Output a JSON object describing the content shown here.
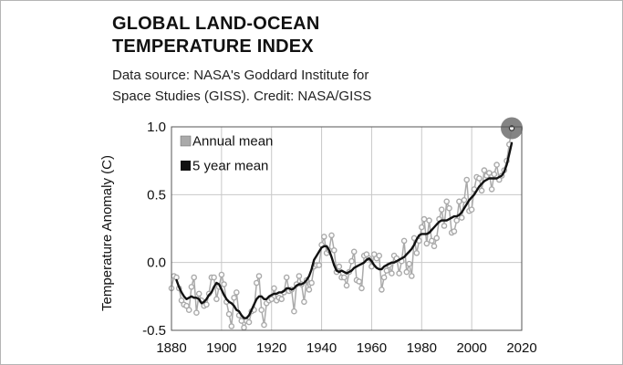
{
  "chart_data": {
    "type": "line",
    "title_lines": [
      "GLOBAL LAND-OCEAN",
      "TEMPERATURE INDEX"
    ],
    "subtitle_lines": [
      "Data source: NASA's Goddard Institute for",
      "Space Studies (GISS). Credit: NASA/GISS"
    ],
    "xlabel": "",
    "ylabel": "Temperature Anomaly (C)",
    "xlim": [
      1880,
      2020
    ],
    "ylim": [
      -0.5,
      1.0
    ],
    "xticks": [
      1880,
      1900,
      1920,
      1940,
      1960,
      1980,
      2000,
      2020
    ],
    "yticks": [
      1.0,
      0.5,
      0.0,
      -0.5
    ],
    "ytick_labels": [
      "1.0",
      "0.5",
      "0.0",
      "-0.5"
    ],
    "grid": true,
    "legend_position": "top-left",
    "colors": {
      "annual": "#aaaaaa",
      "five_year": "#111111",
      "highlight": "#777777"
    },
    "highlight_point": {
      "x": 2016,
      "y": 0.99
    },
    "series": [
      {
        "name": "Annual mean",
        "style": "gray-dots",
        "x": [
          1880,
          1881,
          1882,
          1883,
          1884,
          1885,
          1886,
          1887,
          1888,
          1889,
          1890,
          1891,
          1892,
          1893,
          1894,
          1895,
          1896,
          1897,
          1898,
          1899,
          1900,
          1901,
          1902,
          1903,
          1904,
          1905,
          1906,
          1907,
          1908,
          1909,
          1910,
          1911,
          1912,
          1913,
          1914,
          1915,
          1916,
          1917,
          1918,
          1919,
          1920,
          1921,
          1922,
          1923,
          1924,
          1925,
          1926,
          1927,
          1928,
          1929,
          1930,
          1931,
          1932,
          1933,
          1934,
          1935,
          1936,
          1937,
          1938,
          1939,
          1940,
          1941,
          1942,
          1943,
          1944,
          1945,
          1946,
          1947,
          1948,
          1949,
          1950,
          1951,
          1952,
          1953,
          1954,
          1955,
          1956,
          1957,
          1958,
          1959,
          1960,
          1961,
          1962,
          1963,
          1964,
          1965,
          1966,
          1967,
          1968,
          1969,
          1970,
          1971,
          1972,
          1973,
          1974,
          1975,
          1976,
          1977,
          1978,
          1979,
          1980,
          1981,
          1982,
          1983,
          1984,
          1985,
          1986,
          1987,
          1988,
          1989,
          1990,
          1991,
          1992,
          1993,
          1994,
          1995,
          1996,
          1997,
          1998,
          1999,
          2000,
          2001,
          2002,
          2003,
          2004,
          2005,
          2006,
          2007,
          2008,
          2009,
          2010,
          2011,
          2012,
          2013,
          2014,
          2015,
          2016
        ],
        "values": [
          -0.19,
          -0.1,
          -0.11,
          -0.19,
          -0.28,
          -0.31,
          -0.32,
          -0.35,
          -0.18,
          -0.11,
          -0.37,
          -0.23,
          -0.28,
          -0.32,
          -0.31,
          -0.23,
          -0.11,
          -0.11,
          -0.27,
          -0.18,
          -0.09,
          -0.16,
          -0.29,
          -0.38,
          -0.47,
          -0.26,
          -0.22,
          -0.39,
          -0.43,
          -0.48,
          -0.43,
          -0.44,
          -0.36,
          -0.35,
          -0.15,
          -0.1,
          -0.35,
          -0.46,
          -0.3,
          -0.28,
          -0.27,
          -0.19,
          -0.28,
          -0.26,
          -0.27,
          -0.22,
          -0.11,
          -0.21,
          -0.2,
          -0.36,
          -0.16,
          -0.1,
          -0.16,
          -0.29,
          -0.13,
          -0.2,
          -0.15,
          -0.03,
          -0.02,
          -0.02,
          0.13,
          0.19,
          0.07,
          0.09,
          0.2,
          0.09,
          -0.07,
          -0.03,
          -0.11,
          -0.11,
          -0.17,
          -0.07,
          0.01,
          0.08,
          -0.13,
          -0.14,
          -0.19,
          0.05,
          0.06,
          0.03,
          -0.03,
          0.06,
          0.03,
          0.05,
          -0.2,
          -0.11,
          -0.06,
          -0.02,
          -0.08,
          0.05,
          0.03,
          -0.08,
          0.01,
          0.16,
          -0.07,
          -0.01,
          -0.1,
          0.18,
          0.07,
          0.16,
          0.26,
          0.32,
          0.14,
          0.31,
          0.16,
          0.12,
          0.18,
          0.32,
          0.39,
          0.27,
          0.45,
          0.4,
          0.22,
          0.23,
          0.31,
          0.45,
          0.33,
          0.46,
          0.61,
          0.38,
          0.39,
          0.54,
          0.63,
          0.62,
          0.53,
          0.68,
          0.64,
          0.66,
          0.54,
          0.65,
          0.72,
          0.61,
          0.64,
          0.68,
          0.75,
          0.87,
          0.99
        ]
      },
      {
        "name": "5 year mean",
        "style": "black-line",
        "x": [
          1882,
          1883,
          1884,
          1885,
          1886,
          1887,
          1888,
          1889,
          1890,
          1891,
          1892,
          1893,
          1894,
          1895,
          1896,
          1897,
          1898,
          1899,
          1900,
          1901,
          1902,
          1903,
          1904,
          1905,
          1906,
          1907,
          1908,
          1909,
          1910,
          1911,
          1912,
          1913,
          1914,
          1915,
          1916,
          1917,
          1918,
          1919,
          1920,
          1921,
          1922,
          1923,
          1924,
          1925,
          1926,
          1927,
          1928,
          1929,
          1930,
          1931,
          1932,
          1933,
          1934,
          1935,
          1936,
          1937,
          1938,
          1939,
          1940,
          1941,
          1942,
          1943,
          1944,
          1945,
          1946,
          1947,
          1948,
          1949,
          1950,
          1951,
          1952,
          1953,
          1954,
          1955,
          1956,
          1957,
          1958,
          1959,
          1960,
          1961,
          1962,
          1963,
          1964,
          1965,
          1966,
          1967,
          1968,
          1969,
          1970,
          1971,
          1972,
          1973,
          1974,
          1975,
          1976,
          1977,
          1978,
          1979,
          1980,
          1981,
          1982,
          1983,
          1984,
          1985,
          1986,
          1987,
          1988,
          1989,
          1990,
          1991,
          1992,
          1993,
          1994,
          1995,
          1996,
          1997,
          1998,
          1999,
          2000,
          2001,
          2002,
          2003,
          2004,
          2005,
          2006,
          2007,
          2008,
          2009,
          2010,
          2011,
          2012,
          2013,
          2014,
          2015,
          2016
        ],
        "values": [
          -0.13,
          -0.18,
          -0.22,
          -0.25,
          -0.27,
          -0.26,
          -0.25,
          -0.26,
          -0.26,
          -0.27,
          -0.3,
          -0.29,
          -0.27,
          -0.24,
          -0.22,
          -0.18,
          -0.15,
          -0.16,
          -0.2,
          -0.24,
          -0.27,
          -0.29,
          -0.3,
          -0.32,
          -0.35,
          -0.36,
          -0.39,
          -0.41,
          -0.41,
          -0.39,
          -0.35,
          -0.31,
          -0.27,
          -0.25,
          -0.25,
          -0.27,
          -0.27,
          -0.25,
          -0.24,
          -0.23,
          -0.23,
          -0.22,
          -0.22,
          -0.21,
          -0.19,
          -0.19,
          -0.2,
          -0.19,
          -0.17,
          -0.16,
          -0.16,
          -0.15,
          -0.13,
          -0.1,
          -0.05,
          0.02,
          0.05,
          0.08,
          0.11,
          0.12,
          0.12,
          0.09,
          0.04,
          -0.02,
          -0.06,
          -0.07,
          -0.06,
          -0.07,
          -0.08,
          -0.07,
          -0.06,
          -0.04,
          -0.03,
          -0.02,
          -0.01,
          0.0,
          0.02,
          0.03,
          0.01,
          -0.02,
          -0.04,
          -0.05,
          -0.05,
          -0.03,
          -0.02,
          -0.01,
          0.0,
          0.0,
          0.01,
          0.02,
          0.03,
          0.04,
          0.06,
          0.08,
          0.1,
          0.13,
          0.17,
          0.2,
          0.21,
          0.21,
          0.21,
          0.22,
          0.24,
          0.26,
          0.28,
          0.3,
          0.31,
          0.31,
          0.31,
          0.32,
          0.33,
          0.34,
          0.34,
          0.35,
          0.37,
          0.4,
          0.43,
          0.46,
          0.48,
          0.5,
          0.53,
          0.56,
          0.58,
          0.6,
          0.61,
          0.62,
          0.62,
          0.62,
          0.62,
          0.63,
          0.64,
          0.67,
          0.72,
          0.8,
          0.88
        ]
      }
    ]
  }
}
